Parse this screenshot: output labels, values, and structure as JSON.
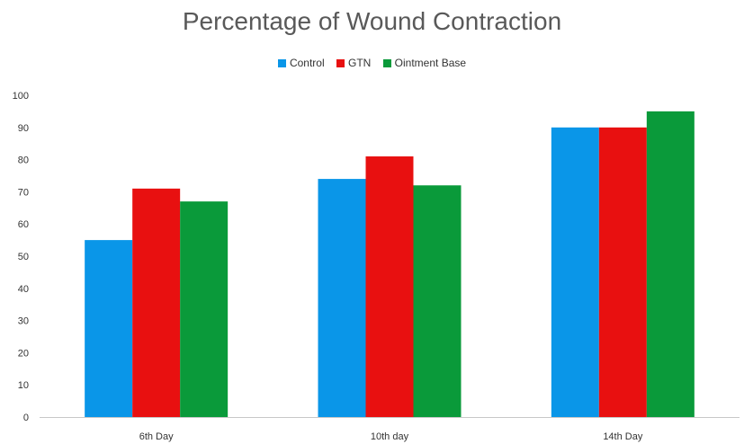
{
  "chart_data": {
    "type": "bar",
    "title": "Percentage of Wound Contraction",
    "categories": [
      "6th Day",
      "10th day",
      "14th Day"
    ],
    "series": [
      {
        "name": "Control",
        "values": [
          55,
          74,
          90
        ],
        "color": "#0a96e8"
      },
      {
        "name": "GTN",
        "values": [
          71,
          81,
          90
        ],
        "color": "#e81010"
      },
      {
        "name": "Ointment Base",
        "values": [
          67,
          72,
          95
        ],
        "color": "#0a9a3a"
      }
    ],
    "xlabel": "",
    "ylabel": "",
    "ylim": [
      0,
      100
    ],
    "yticks": [
      "0",
      "10",
      "20",
      "30",
      "40",
      "50",
      "60",
      "70",
      "80",
      "90",
      "100"
    ],
    "grid": false,
    "legend_position": "top"
  }
}
